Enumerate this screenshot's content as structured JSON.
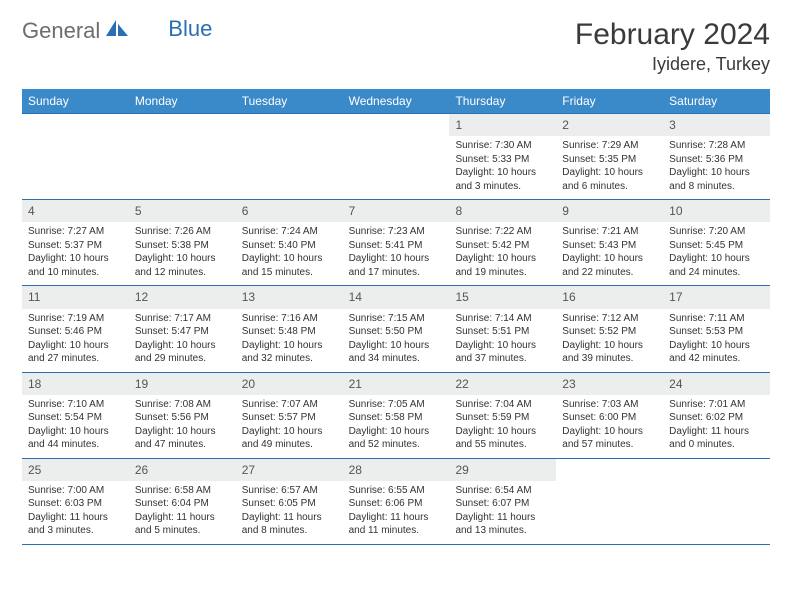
{
  "logo": {
    "word1": "General",
    "word2": "Blue"
  },
  "title": "February 2024",
  "location": "Iyidere, Turkey",
  "colors": {
    "header_bg": "#3a89c9",
    "header_border": "#2a6fb5",
    "daynum_bg": "#eceded",
    "text": "#333333",
    "logo_gray": "#6d6d6d",
    "logo_blue": "#2a6fb5"
  },
  "day_headers": [
    "Sunday",
    "Monday",
    "Tuesday",
    "Wednesday",
    "Thursday",
    "Friday",
    "Saturday"
  ],
  "weeks": [
    [
      {
        "n": "",
        "sr": "",
        "ss": "",
        "dl": ""
      },
      {
        "n": "",
        "sr": "",
        "ss": "",
        "dl": ""
      },
      {
        "n": "",
        "sr": "",
        "ss": "",
        "dl": ""
      },
      {
        "n": "",
        "sr": "",
        "ss": "",
        "dl": ""
      },
      {
        "n": "1",
        "sr": "Sunrise: 7:30 AM",
        "ss": "Sunset: 5:33 PM",
        "dl": "Daylight: 10 hours and 3 minutes."
      },
      {
        "n": "2",
        "sr": "Sunrise: 7:29 AM",
        "ss": "Sunset: 5:35 PM",
        "dl": "Daylight: 10 hours and 6 minutes."
      },
      {
        "n": "3",
        "sr": "Sunrise: 7:28 AM",
        "ss": "Sunset: 5:36 PM",
        "dl": "Daylight: 10 hours and 8 minutes."
      }
    ],
    [
      {
        "n": "4",
        "sr": "Sunrise: 7:27 AM",
        "ss": "Sunset: 5:37 PM",
        "dl": "Daylight: 10 hours and 10 minutes."
      },
      {
        "n": "5",
        "sr": "Sunrise: 7:26 AM",
        "ss": "Sunset: 5:38 PM",
        "dl": "Daylight: 10 hours and 12 minutes."
      },
      {
        "n": "6",
        "sr": "Sunrise: 7:24 AM",
        "ss": "Sunset: 5:40 PM",
        "dl": "Daylight: 10 hours and 15 minutes."
      },
      {
        "n": "7",
        "sr": "Sunrise: 7:23 AM",
        "ss": "Sunset: 5:41 PM",
        "dl": "Daylight: 10 hours and 17 minutes."
      },
      {
        "n": "8",
        "sr": "Sunrise: 7:22 AM",
        "ss": "Sunset: 5:42 PM",
        "dl": "Daylight: 10 hours and 19 minutes."
      },
      {
        "n": "9",
        "sr": "Sunrise: 7:21 AM",
        "ss": "Sunset: 5:43 PM",
        "dl": "Daylight: 10 hours and 22 minutes."
      },
      {
        "n": "10",
        "sr": "Sunrise: 7:20 AM",
        "ss": "Sunset: 5:45 PM",
        "dl": "Daylight: 10 hours and 24 minutes."
      }
    ],
    [
      {
        "n": "11",
        "sr": "Sunrise: 7:19 AM",
        "ss": "Sunset: 5:46 PM",
        "dl": "Daylight: 10 hours and 27 minutes."
      },
      {
        "n": "12",
        "sr": "Sunrise: 7:17 AM",
        "ss": "Sunset: 5:47 PM",
        "dl": "Daylight: 10 hours and 29 minutes."
      },
      {
        "n": "13",
        "sr": "Sunrise: 7:16 AM",
        "ss": "Sunset: 5:48 PM",
        "dl": "Daylight: 10 hours and 32 minutes."
      },
      {
        "n": "14",
        "sr": "Sunrise: 7:15 AM",
        "ss": "Sunset: 5:50 PM",
        "dl": "Daylight: 10 hours and 34 minutes."
      },
      {
        "n": "15",
        "sr": "Sunrise: 7:14 AM",
        "ss": "Sunset: 5:51 PM",
        "dl": "Daylight: 10 hours and 37 minutes."
      },
      {
        "n": "16",
        "sr": "Sunrise: 7:12 AM",
        "ss": "Sunset: 5:52 PM",
        "dl": "Daylight: 10 hours and 39 minutes."
      },
      {
        "n": "17",
        "sr": "Sunrise: 7:11 AM",
        "ss": "Sunset: 5:53 PM",
        "dl": "Daylight: 10 hours and 42 minutes."
      }
    ],
    [
      {
        "n": "18",
        "sr": "Sunrise: 7:10 AM",
        "ss": "Sunset: 5:54 PM",
        "dl": "Daylight: 10 hours and 44 minutes."
      },
      {
        "n": "19",
        "sr": "Sunrise: 7:08 AM",
        "ss": "Sunset: 5:56 PM",
        "dl": "Daylight: 10 hours and 47 minutes."
      },
      {
        "n": "20",
        "sr": "Sunrise: 7:07 AM",
        "ss": "Sunset: 5:57 PM",
        "dl": "Daylight: 10 hours and 49 minutes."
      },
      {
        "n": "21",
        "sr": "Sunrise: 7:05 AM",
        "ss": "Sunset: 5:58 PM",
        "dl": "Daylight: 10 hours and 52 minutes."
      },
      {
        "n": "22",
        "sr": "Sunrise: 7:04 AM",
        "ss": "Sunset: 5:59 PM",
        "dl": "Daylight: 10 hours and 55 minutes."
      },
      {
        "n": "23",
        "sr": "Sunrise: 7:03 AM",
        "ss": "Sunset: 6:00 PM",
        "dl": "Daylight: 10 hours and 57 minutes."
      },
      {
        "n": "24",
        "sr": "Sunrise: 7:01 AM",
        "ss": "Sunset: 6:02 PM",
        "dl": "Daylight: 11 hours and 0 minutes."
      }
    ],
    [
      {
        "n": "25",
        "sr": "Sunrise: 7:00 AM",
        "ss": "Sunset: 6:03 PM",
        "dl": "Daylight: 11 hours and 3 minutes."
      },
      {
        "n": "26",
        "sr": "Sunrise: 6:58 AM",
        "ss": "Sunset: 6:04 PM",
        "dl": "Daylight: 11 hours and 5 minutes."
      },
      {
        "n": "27",
        "sr": "Sunrise: 6:57 AM",
        "ss": "Sunset: 6:05 PM",
        "dl": "Daylight: 11 hours and 8 minutes."
      },
      {
        "n": "28",
        "sr": "Sunrise: 6:55 AM",
        "ss": "Sunset: 6:06 PM",
        "dl": "Daylight: 11 hours and 11 minutes."
      },
      {
        "n": "29",
        "sr": "Sunrise: 6:54 AM",
        "ss": "Sunset: 6:07 PM",
        "dl": "Daylight: 11 hours and 13 minutes."
      },
      {
        "n": "",
        "sr": "",
        "ss": "",
        "dl": ""
      },
      {
        "n": "",
        "sr": "",
        "ss": "",
        "dl": ""
      }
    ]
  ]
}
